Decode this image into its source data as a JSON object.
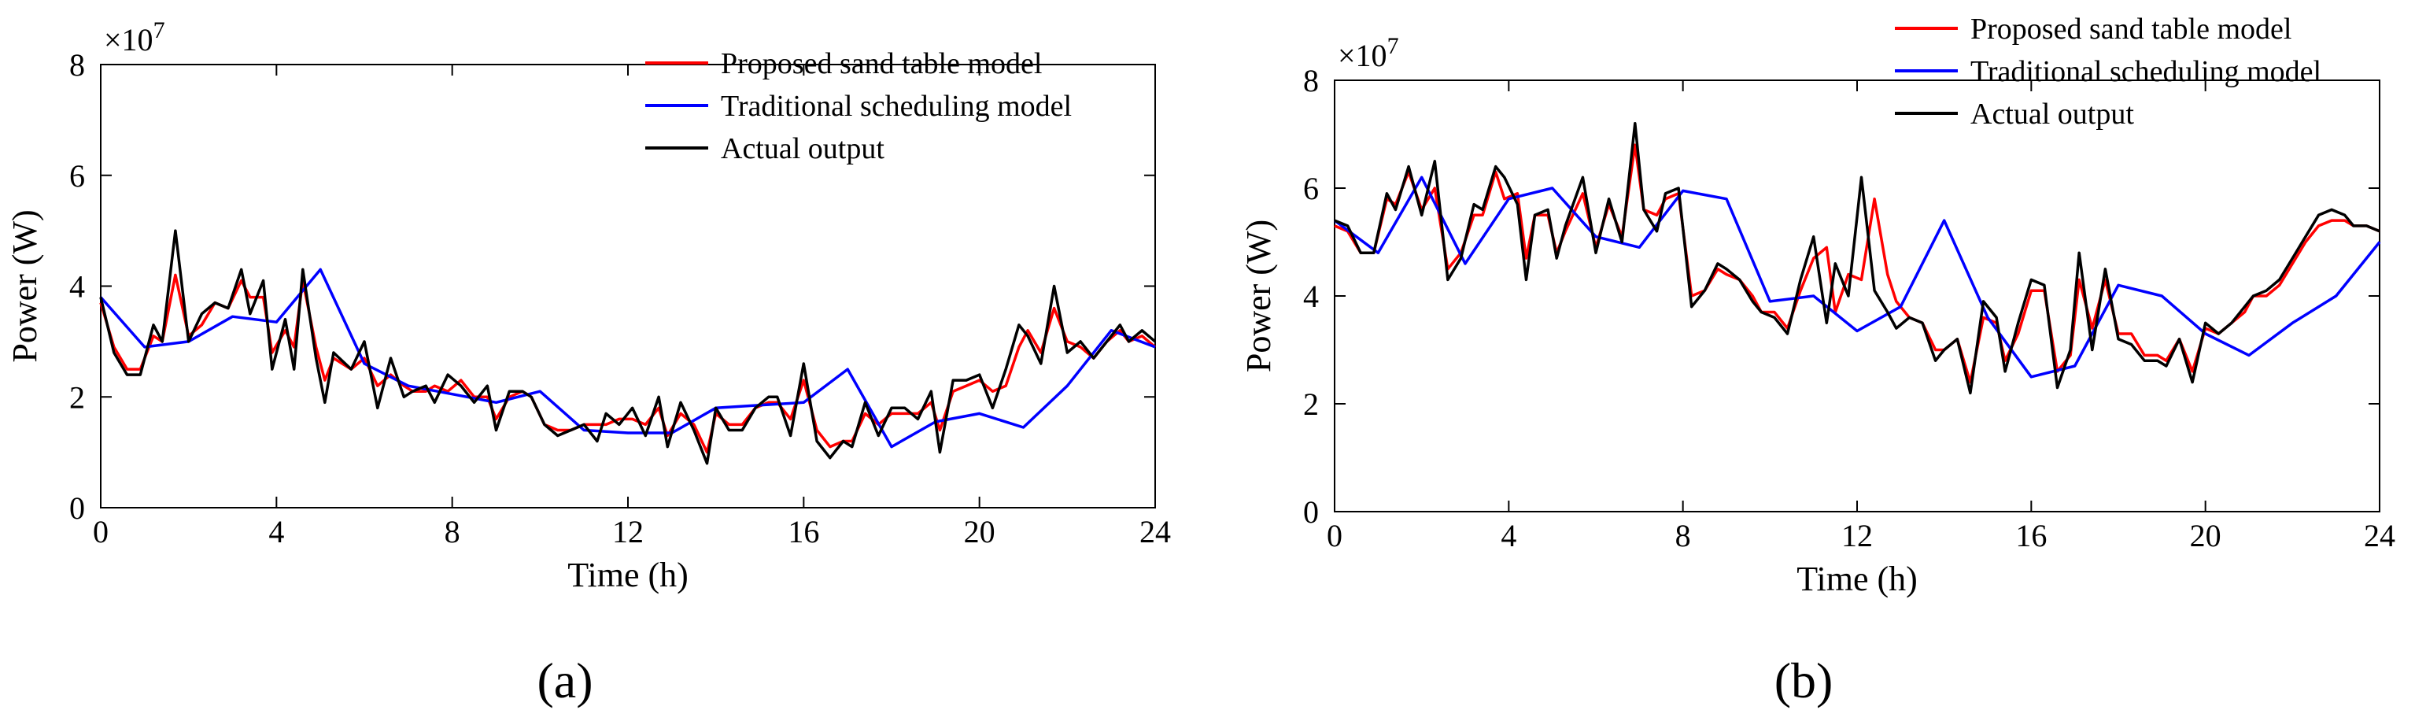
{
  "figure": {
    "panel_labels": [
      "(a)",
      "(b)"
    ]
  },
  "chart_data": [
    {
      "type": "line",
      "panel": "(a)",
      "xlabel": "Time (h)",
      "ylabel": "Power (W)",
      "y_exponent": "×10",
      "y_exponent_power": "7",
      "xlim": [
        0,
        24
      ],
      "ylim": [
        0,
        8
      ],
      "xticks": [
        0,
        4,
        8,
        12,
        16,
        20,
        24
      ],
      "yticks": [
        0,
        2,
        4,
        6,
        8
      ],
      "grid": false,
      "legend_position": "top-right",
      "series": [
        {
          "name": "Proposed sand table model",
          "color": "#ff0000",
          "x": [
            0,
            0.3,
            0.6,
            0.9,
            1.2,
            1.4,
            1.7,
            2.0,
            2.3,
            2.6,
            2.9,
            3.2,
            3.4,
            3.7,
            3.9,
            4.2,
            4.4,
            4.6,
            4.9,
            5.1,
            5.3,
            5.7,
            6.0,
            6.3,
            6.6,
            6.9,
            7.1,
            7.4,
            7.6,
            7.9,
            8.2,
            8.5,
            8.8,
            9.0,
            9.3,
            9.6,
            9.8,
            10.1,
            10.4,
            10.7,
            11.0,
            11.3,
            11.5,
            11.8,
            12.1,
            12.4,
            12.7,
            12.9,
            13.2,
            13.5,
            13.8,
            14.0,
            14.3,
            14.6,
            14.9,
            15.2,
            15.4,
            15.7,
            16.0,
            16.3,
            16.6,
            16.9,
            17.1,
            17.4,
            17.7,
            18.0,
            18.3,
            18.6,
            18.9,
            19.1,
            19.4,
            19.7,
            20.0,
            20.3,
            20.6,
            20.9,
            21.1,
            21.4,
            21.7,
            22.0,
            22.3,
            22.6,
            22.9,
            23.2,
            23.4,
            23.7,
            24.0
          ],
          "values": [
            3.7,
            2.9,
            2.5,
            2.5,
            3.1,
            3.0,
            4.2,
            3.1,
            3.3,
            3.7,
            3.6,
            4.1,
            3.8,
            3.8,
            2.8,
            3.2,
            2.9,
            4.1,
            2.9,
            2.3,
            2.7,
            2.5,
            2.7,
            2.2,
            2.4,
            2.2,
            2.1,
            2.1,
            2.2,
            2.1,
            2.3,
            2.0,
            2.0,
            1.6,
            2.0,
            2.1,
            2.0,
            1.5,
            1.4,
            1.4,
            1.5,
            1.5,
            1.5,
            1.6,
            1.6,
            1.5,
            1.8,
            1.3,
            1.7,
            1.5,
            1.0,
            1.7,
            1.5,
            1.5,
            1.8,
            1.9,
            1.9,
            1.6,
            2.3,
            1.4,
            1.1,
            1.2,
            1.2,
            1.7,
            1.5,
            1.7,
            1.7,
            1.7,
            1.9,
            1.4,
            2.1,
            2.2,
            2.3,
            2.1,
            2.2,
            2.9,
            3.2,
            2.8,
            3.6,
            3.0,
            2.9,
            2.7,
            3.0,
            3.2,
            3.0,
            3.1,
            2.9
          ]
        },
        {
          "name": "Traditional scheduling model",
          "color": "#0000ff",
          "x": [
            0,
            1,
            2,
            3,
            4,
            5,
            6,
            7,
            8,
            9,
            10,
            11,
            12,
            13,
            14,
            15,
            16,
            17,
            18,
            19,
            20,
            21,
            22,
            23,
            24
          ],
          "values": [
            3.8,
            2.9,
            3.0,
            3.45,
            3.35,
            4.3,
            2.6,
            2.2,
            2.05,
            1.9,
            2.1,
            1.4,
            1.35,
            1.35,
            1.8,
            1.85,
            1.9,
            2.5,
            1.1,
            1.55,
            1.7,
            1.45,
            2.2,
            3.2,
            2.9
          ]
        },
        {
          "name": "Actual output",
          "color": "#000000",
          "x": [
            0,
            0.3,
            0.6,
            0.9,
            1.2,
            1.4,
            1.7,
            2.0,
            2.3,
            2.6,
            2.9,
            3.2,
            3.4,
            3.7,
            3.9,
            4.2,
            4.4,
            4.6,
            4.9,
            5.1,
            5.3,
            5.7,
            6.0,
            6.3,
            6.6,
            6.9,
            7.1,
            7.4,
            7.6,
            7.9,
            8.2,
            8.5,
            8.8,
            9.0,
            9.3,
            9.6,
            9.8,
            10.1,
            10.4,
            10.7,
            11.0,
            11.3,
            11.5,
            11.8,
            12.1,
            12.4,
            12.7,
            12.9,
            13.2,
            13.5,
            13.8,
            14.0,
            14.3,
            14.6,
            14.9,
            15.2,
            15.4,
            15.7,
            16.0,
            16.3,
            16.6,
            16.9,
            17.1,
            17.4,
            17.7,
            18.0,
            18.3,
            18.6,
            18.9,
            19.1,
            19.4,
            19.7,
            20.0,
            20.3,
            20.6,
            20.9,
            21.1,
            21.4,
            21.7,
            22.0,
            22.3,
            22.6,
            22.9,
            23.2,
            23.4,
            23.7,
            24.0
          ],
          "values": [
            3.8,
            2.8,
            2.4,
            2.4,
            3.3,
            3.0,
            5.0,
            3.0,
            3.5,
            3.7,
            3.6,
            4.3,
            3.5,
            4.1,
            2.5,
            3.4,
            2.5,
            4.3,
            2.7,
            1.9,
            2.8,
            2.5,
            3.0,
            1.8,
            2.7,
            2.0,
            2.1,
            2.2,
            1.9,
            2.4,
            2.2,
            1.9,
            2.2,
            1.4,
            2.1,
            2.1,
            2.0,
            1.5,
            1.3,
            1.4,
            1.5,
            1.2,
            1.7,
            1.5,
            1.8,
            1.3,
            2.0,
            1.1,
            1.9,
            1.4,
            0.8,
            1.8,
            1.4,
            1.4,
            1.8,
            2.0,
            2.0,
            1.3,
            2.6,
            1.2,
            0.9,
            1.2,
            1.1,
            1.9,
            1.3,
            1.8,
            1.8,
            1.6,
            2.1,
            1.0,
            2.3,
            2.3,
            2.4,
            1.8,
            2.5,
            3.3,
            3.1,
            2.6,
            4.0,
            2.8,
            3.0,
            2.7,
            3.0,
            3.3,
            3.0,
            3.2,
            3.0
          ]
        }
      ]
    },
    {
      "type": "line",
      "panel": "(b)",
      "xlabel": "Time (h)",
      "ylabel": "Power (W)",
      "y_exponent": "×10",
      "y_exponent_power": "7",
      "xlim": [
        0,
        24
      ],
      "ylim": [
        0,
        8
      ],
      "xticks": [
        0,
        4,
        8,
        12,
        16,
        20,
        24
      ],
      "yticks": [
        0,
        2,
        4,
        6,
        8
      ],
      "grid": false,
      "legend_position": "top-right",
      "series": [
        {
          "name": "Proposed sand table model",
          "color": "#ff0000",
          "x": [
            0,
            0.3,
            0.6,
            0.9,
            1.2,
            1.4,
            1.7,
            2.0,
            2.3,
            2.6,
            2.9,
            3.2,
            3.4,
            3.7,
            3.9,
            4.2,
            4.4,
            4.6,
            4.9,
            5.1,
            5.3,
            5.7,
            6.0,
            6.3,
            6.6,
            6.9,
            7.1,
            7.4,
            7.6,
            7.9,
            8.2,
            8.5,
            8.8,
            9.0,
            9.3,
            9.6,
            9.8,
            10.1,
            10.4,
            10.7,
            11.0,
            11.3,
            11.5,
            11.8,
            12.1,
            12.4,
            12.7,
            12.9,
            13.2,
            13.5,
            13.8,
            14.0,
            14.3,
            14.6,
            14.9,
            15.2,
            15.4,
            15.7,
            16.0,
            16.3,
            16.6,
            16.9,
            17.1,
            17.4,
            17.7,
            18.0,
            18.3,
            18.6,
            18.9,
            19.1,
            19.4,
            19.7,
            20.0,
            20.3,
            20.6,
            20.9,
            21.1,
            21.4,
            21.7,
            22.0,
            22.3,
            22.6,
            22.9,
            23.2,
            23.4,
            23.7,
            24.0
          ],
          "values": [
            5.3,
            5.2,
            4.8,
            4.8,
            5.8,
            5.7,
            6.3,
            5.6,
            6.0,
            4.5,
            4.8,
            5.5,
            5.5,
            6.3,
            5.8,
            5.9,
            4.7,
            5.5,
            5.5,
            4.8,
            5.2,
            5.9,
            4.9,
            5.7,
            5.1,
            6.8,
            5.6,
            5.5,
            5.8,
            5.9,
            4.0,
            4.1,
            4.5,
            4.4,
            4.3,
            4.0,
            3.7,
            3.7,
            3.4,
            4.1,
            4.7,
            4.9,
            3.7,
            4.4,
            4.3,
            5.8,
            4.4,
            3.9,
            3.6,
            3.5,
            3.0,
            3.0,
            3.2,
            2.4,
            3.6,
            3.5,
            2.8,
            3.3,
            4.1,
            4.1,
            2.6,
            2.9,
            4.3,
            3.4,
            4.3,
            3.3,
            3.3,
            2.9,
            2.9,
            2.8,
            3.2,
            2.6,
            3.4,
            3.3,
            3.5,
            3.7,
            4.0,
            4.0,
            4.2,
            4.6,
            5.0,
            5.3,
            5.4,
            5.4,
            5.3,
            5.3,
            5.2
          ]
        },
        {
          "name": "Traditional scheduling model",
          "color": "#0000ff",
          "x": [
            0,
            1,
            2,
            3,
            4,
            5,
            6,
            7,
            8,
            9,
            10,
            11,
            12,
            13,
            14,
            15,
            16,
            17,
            18,
            19,
            20,
            21,
            22,
            23,
            24
          ],
          "values": [
            5.4,
            4.8,
            6.2,
            4.6,
            5.8,
            6.0,
            5.1,
            4.9,
            5.95,
            5.8,
            3.9,
            4.0,
            3.35,
            3.8,
            5.4,
            3.6,
            2.5,
            2.7,
            4.2,
            4.0,
            3.3,
            2.9,
            3.5,
            4.0,
            5.0
          ]
        },
        {
          "name": "Actual output",
          "color": "#000000",
          "x": [
            0,
            0.3,
            0.6,
            0.9,
            1.2,
            1.4,
            1.7,
            2.0,
            2.3,
            2.6,
            2.9,
            3.2,
            3.4,
            3.7,
            3.9,
            4.2,
            4.4,
            4.6,
            4.9,
            5.1,
            5.3,
            5.7,
            6.0,
            6.3,
            6.6,
            6.9,
            7.1,
            7.4,
            7.6,
            7.9,
            8.2,
            8.5,
            8.8,
            9.0,
            9.3,
            9.6,
            9.8,
            10.1,
            10.4,
            10.7,
            11.0,
            11.3,
            11.5,
            11.8,
            12.1,
            12.4,
            12.7,
            12.9,
            13.2,
            13.5,
            13.8,
            14.0,
            14.3,
            14.6,
            14.9,
            15.2,
            15.4,
            15.7,
            16.0,
            16.3,
            16.6,
            16.9,
            17.1,
            17.4,
            17.7,
            18.0,
            18.3,
            18.6,
            18.9,
            19.1,
            19.4,
            19.7,
            20.0,
            20.3,
            20.6,
            20.9,
            21.1,
            21.4,
            21.7,
            22.0,
            22.3,
            22.6,
            22.9,
            23.2,
            23.4,
            23.7,
            24.0
          ],
          "values": [
            5.4,
            5.3,
            4.8,
            4.8,
            5.9,
            5.6,
            6.4,
            5.5,
            6.5,
            4.3,
            4.7,
            5.7,
            5.6,
            6.4,
            6.2,
            5.7,
            4.3,
            5.5,
            5.6,
            4.7,
            5.3,
            6.2,
            4.8,
            5.8,
            5.0,
            7.2,
            5.6,
            5.2,
            5.9,
            6.0,
            3.8,
            4.1,
            4.6,
            4.5,
            4.3,
            3.9,
            3.7,
            3.6,
            3.3,
            4.3,
            5.1,
            3.5,
            4.6,
            4.0,
            6.2,
            4.1,
            3.7,
            3.4,
            3.6,
            3.5,
            2.8,
            3.0,
            3.2,
            2.2,
            3.9,
            3.6,
            2.6,
            3.5,
            4.3,
            4.2,
            2.3,
            3.0,
            4.8,
            3.0,
            4.5,
            3.2,
            3.1,
            2.8,
            2.8,
            2.7,
            3.2,
            2.4,
            3.5,
            3.3,
            3.5,
            3.8,
            4.0,
            4.1,
            4.3,
            4.7,
            5.1,
            5.5,
            5.6,
            5.5,
            5.3,
            5.3,
            5.2
          ]
        }
      ]
    }
  ]
}
